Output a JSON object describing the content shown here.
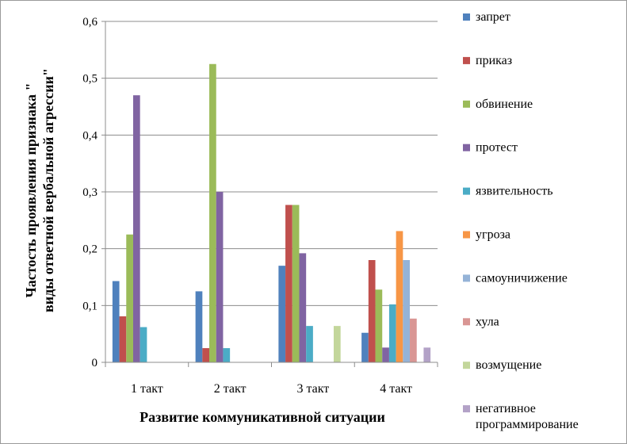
{
  "chart_data": {
    "type": "bar",
    "title": "",
    "xlabel": "Развитие коммуникативной ситуации",
    "ylabel": "Частость проявления признака \"виды ответной вербальной агрессии\"",
    "ylim": [
      0,
      0.6
    ],
    "yticks": [
      "0",
      "0,1",
      "0,2",
      "0,3",
      "0,4",
      "0,5",
      "0,6"
    ],
    "grid": true,
    "legend_position": "right",
    "categories": [
      "1 такт",
      "2 такт",
      "3 такт",
      "4 такт"
    ],
    "series": [
      {
        "name": "запрет",
        "color": "#4F81BD",
        "values": [
          0.143,
          0.125,
          0.17,
          0.052
        ]
      },
      {
        "name": "приказ",
        "color": "#C0504D",
        "values": [
          0.081,
          0.025,
          0.277,
          0.18
        ]
      },
      {
        "name": "обвинение",
        "color": "#9BBB59",
        "values": [
          0.225,
          0.525,
          0.277,
          0.128
        ]
      },
      {
        "name": "протест",
        "color": "#8064A2",
        "values": [
          0.47,
          0.3,
          0.192,
          0.026
        ]
      },
      {
        "name": "язвительность",
        "color": "#4BACC6",
        "values": [
          0.062,
          0.025,
          0.064,
          0.102
        ]
      },
      {
        "name": "угроза",
        "color": "#F79646",
        "values": [
          0,
          0,
          0,
          0.231
        ]
      },
      {
        "name": "самоуничижение",
        "color": "#95B3D7",
        "values": [
          0,
          0,
          0,
          0.18
        ]
      },
      {
        "name": "хула",
        "color": "#D99694",
        "values": [
          0,
          0,
          0,
          0.077
        ]
      },
      {
        "name": "возмущение",
        "color": "#C3D69B",
        "values": [
          0,
          0,
          0.064,
          0
        ]
      },
      {
        "name": "негативное программирование",
        "color": "#B3A2C7",
        "values": [
          0,
          0,
          0,
          0.026
        ]
      }
    ]
  }
}
